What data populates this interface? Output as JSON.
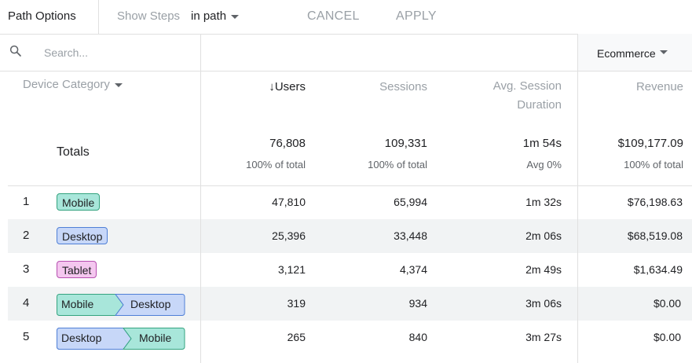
{
  "toolbar": {
    "path_options": "Path Options",
    "show_steps_label": "Show Steps",
    "show_steps_value": "in path",
    "cancel": "CANCEL",
    "apply": "APPLY"
  },
  "search": {
    "placeholder": "Search..."
  },
  "segment_dropdown": "Ecommerce",
  "columns": {
    "dimension": "Device Category",
    "users": "Users",
    "sessions": "Sessions",
    "avg_session_line1": "Avg. Session",
    "avg_session_line2": "Duration",
    "revenue": "Revenue"
  },
  "totals": {
    "label": "Totals",
    "users": "76,808",
    "users_sub": "100% of total",
    "sessions": "109,331",
    "sessions_sub": "100% of total",
    "duration": "1m 54s",
    "duration_sub": "Avg 0%",
    "revenue": "$109,177.09",
    "revenue_sub": "100% of total"
  },
  "rows": [
    {
      "num": "1",
      "path": [
        "Mobile"
      ],
      "users": "47,810",
      "sessions": "65,994",
      "duration": "1m 32s",
      "revenue": "$76,198.63"
    },
    {
      "num": "2",
      "path": [
        "Desktop"
      ],
      "users": "25,396",
      "sessions": "33,448",
      "duration": "2m 06s",
      "revenue": "$68,519.08"
    },
    {
      "num": "3",
      "path": [
        "Tablet"
      ],
      "users": "3,121",
      "sessions": "4,374",
      "duration": "2m 49s",
      "revenue": "$1,634.49"
    },
    {
      "num": "4",
      "path": [
        "Mobile",
        "Desktop"
      ],
      "users": "319",
      "sessions": "934",
      "duration": "3m 06s",
      "revenue": "$0.00"
    },
    {
      "num": "5",
      "path": [
        "Desktop",
        "Mobile"
      ],
      "users": "265",
      "sessions": "840",
      "duration": "3m 27s",
      "revenue": "$0.00"
    }
  ],
  "colors": {
    "mobile_chip": "#a8e6da",
    "desktop_chip": "#c7d7f8",
    "tablet_chip": "#f4c7ef"
  }
}
